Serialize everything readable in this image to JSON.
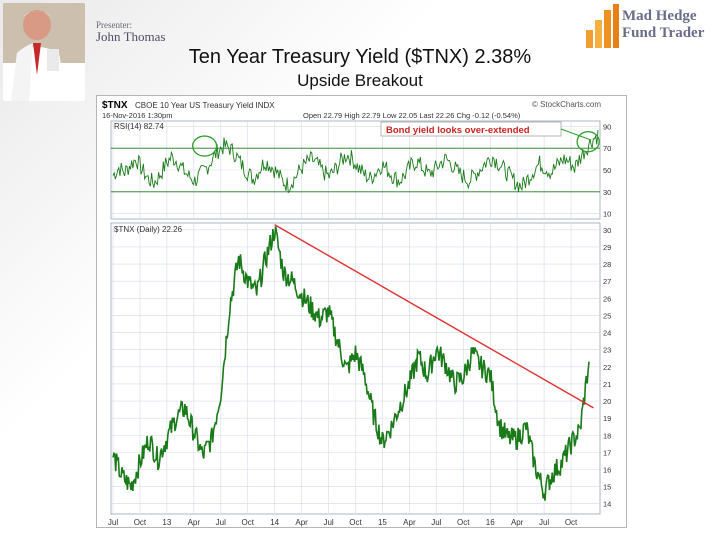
{
  "presenter": {
    "label": "Presenter:",
    "name": "John Thomas"
  },
  "logo": {
    "line1": "Mad Hedge",
    "line2": "Fund Trader"
  },
  "slide": {
    "title": "Ten Year Treasury Yield ($TNX) 2.38%",
    "subtitle": "Upside Breakout"
  },
  "stockcharts_header": {
    "symbol": "$TNX",
    "description": "CBOE 10 Year US Treasury Yield INDX",
    "watermark": "© StockCharts.com",
    "datetime": "16-Nov-2016 1:30pm",
    "quote": "Open 22.79 High 22.79 Low 22.05 Last 22.26 Chg -0.12 (-0.54%)"
  },
  "colors": {
    "price": "#1a7a1a",
    "rsi": "#1a7a1a",
    "trendline": "#e03030",
    "annotation_circle": "#2ea02e",
    "annotation_text": "#cc2222",
    "grid": "#d4dbe8"
  },
  "chart_data": [
    {
      "type": "line",
      "panel": "RSI",
      "label": "RSI(14) 82.74",
      "last_value": 82.74,
      "y_ticks": [
        10,
        30,
        50,
        70,
        90
      ],
      "ylim": [
        5,
        95
      ],
      "guide_lines": [
        30,
        70
      ],
      "annotation": {
        "text": "Bond yield looks over-extended",
        "circles": [
          "Jan 2013 RSI peak",
          "Nov 2016 RSI peak"
        ]
      },
      "series": [
        {
          "values": [
            45,
            52,
            48,
            55,
            60,
            50,
            42,
            38,
            45,
            55,
            62,
            58,
            50,
            44,
            40,
            46,
            52,
            60,
            68,
            72,
            70,
            64,
            55,
            48,
            42,
            50,
            58,
            54,
            48,
            40,
            36,
            42,
            50,
            56,
            60,
            55,
            48,
            44,
            50,
            58,
            64,
            60,
            52,
            46,
            42,
            48,
            55,
            50,
            44,
            40,
            46,
            54,
            58,
            52,
            46,
            50,
            56,
            60,
            55,
            48,
            44,
            40,
            46,
            52,
            58,
            62,
            56,
            50,
            44,
            38,
            35,
            42,
            50,
            56,
            52,
            48,
            54,
            60,
            58,
            52,
            62,
            70,
            78,
            82
          ]
        }
      ]
    },
    {
      "type": "line",
      "panel": "Price",
      "label": "$TNX (Daily) 22.26",
      "last_value": 22.26,
      "y_ticks": [
        14,
        15,
        16,
        17,
        18,
        19,
        20,
        21,
        22,
        23,
        24,
        25,
        26,
        27,
        28,
        29,
        30
      ],
      "ylim": [
        13.4,
        30.4
      ],
      "x_tick_labels": [
        "Jul",
        "Oct",
        "13",
        "Apr",
        "Jul",
        "Oct",
        "14",
        "Apr",
        "Jul",
        "Oct",
        "15",
        "Apr",
        "Jul",
        "Oct",
        "16",
        "Apr",
        "Jul",
        "Oct"
      ],
      "x_tick_months": [
        0,
        3,
        6,
        9,
        12,
        15,
        18,
        21,
        24,
        27,
        30,
        33,
        36,
        39,
        42,
        45,
        48,
        51
      ],
      "series": [
        {
          "month_index": [
            0,
            1,
            2,
            3,
            4,
            5,
            6,
            7,
            8,
            9,
            10,
            11,
            12,
            13,
            14,
            15,
            16,
            17,
            18,
            19,
            20,
            21,
            22,
            23,
            24,
            25,
            26,
            27,
            28,
            29,
            30,
            31,
            32,
            33,
            34,
            35,
            36,
            37,
            38,
            39,
            40,
            41,
            42,
            43,
            44,
            45,
            46,
            47,
            48,
            49,
            50,
            51,
            52,
            53
          ],
          "values": [
            16.8,
            15.6,
            15.0,
            16.4,
            17.8,
            16.6,
            17.8,
            19.0,
            19.6,
            18.2,
            16.8,
            17.8,
            20.5,
            25.6,
            28.3,
            27.0,
            26.3,
            28.3,
            30.0,
            27.5,
            27.0,
            26.2,
            25.5,
            24.8,
            25.2,
            23.5,
            21.8,
            22.8,
            21.5,
            19.2,
            17.6,
            18.5,
            19.8,
            21.0,
            22.6,
            21.5,
            23.0,
            22.2,
            21.0,
            21.4,
            22.8,
            22.0,
            21.5,
            18.6,
            17.8,
            17.8,
            18.5,
            16.2,
            14.7,
            15.8,
            16.4,
            17.5,
            18.3,
            22.3
          ]
        }
      ],
      "trendline": {
        "from": {
          "month_index": 18,
          "value": 30.3
        },
        "to": {
          "month_index": 53.5,
          "value": 19.6
        }
      }
    }
  ]
}
